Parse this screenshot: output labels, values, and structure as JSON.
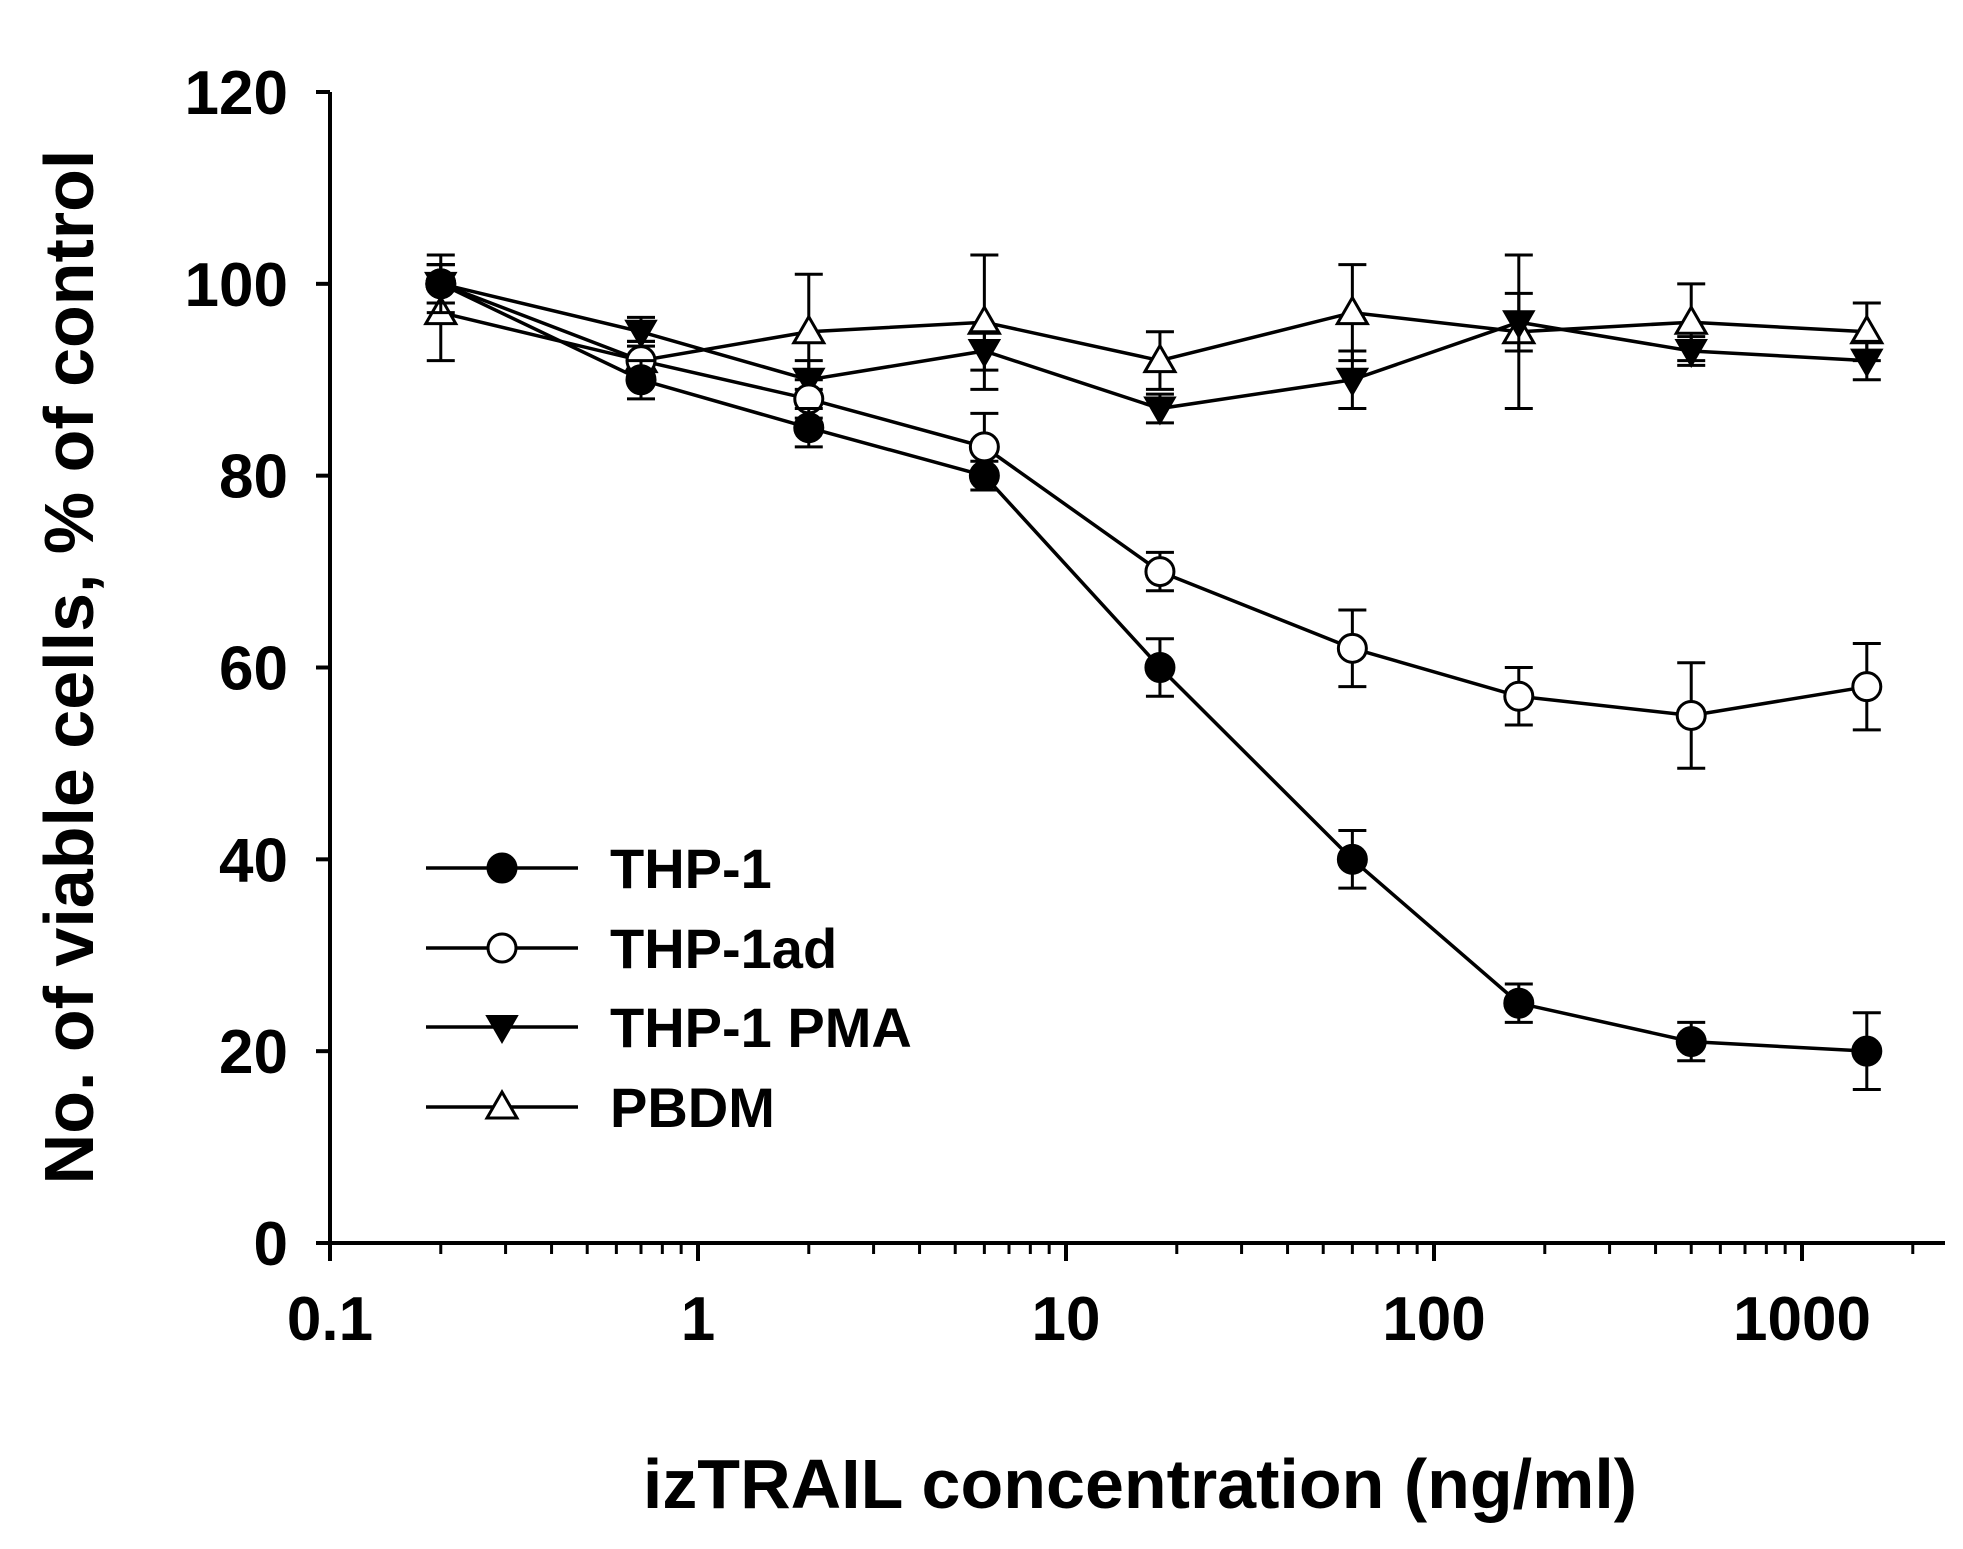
{
  "chart_data": {
    "type": "line",
    "title": "",
    "xlabel": "izTRAIL concentration (ng/ml)",
    "ylabel": "No. of viable cells, % of control",
    "xscale": "log",
    "xlim": [
      0.1,
      2000
    ],
    "ylim": [
      0,
      120
    ],
    "x_ticks": [
      0.1,
      1,
      10,
      100,
      1000
    ],
    "x_tick_labels": [
      "0.1",
      "1",
      "10",
      "100",
      "1000"
    ],
    "y_ticks": [
      0,
      20,
      40,
      60,
      80,
      100,
      120
    ],
    "y_tick_labels": [
      "0",
      "20",
      "40",
      "60",
      "80",
      "100",
      "120"
    ],
    "x": [
      0.2,
      0.7,
      2,
      6,
      18,
      60,
      170,
      500,
      1500
    ],
    "legend_position": "lower-left",
    "series": [
      {
        "name": "THP-1",
        "marker": "filled-circle",
        "values": [
          100,
          90,
          85,
          80,
          60,
          40,
          25,
          21,
          20
        ],
        "errors": [
          3,
          2,
          2,
          1.5,
          3,
          3,
          2,
          2,
          4
        ]
      },
      {
        "name": "THP-1ad",
        "marker": "open-circle",
        "values": [
          100,
          92,
          88,
          83,
          70,
          62,
          57,
          55,
          58
        ],
        "errors": [
          2,
          2,
          2,
          3.5,
          2,
          4,
          3,
          5.5,
          4.5
        ]
      },
      {
        "name": "THP-1 PMA",
        "marker": "filled-triangle-down",
        "values": [
          100,
          95,
          90,
          93,
          87,
          90,
          96,
          93,
          92
        ],
        "errors": [
          2,
          1.5,
          2,
          2,
          1.5,
          3,
          3,
          1.5,
          2
        ]
      },
      {
        "name": "PBDM",
        "marker": "open-triangle-up",
        "values": [
          97,
          92,
          95,
          96,
          92,
          97,
          95,
          96,
          95
        ],
        "errors": [
          5,
          2,
          6,
          7,
          3,
          5,
          8,
          4,
          3
        ]
      }
    ]
  }
}
